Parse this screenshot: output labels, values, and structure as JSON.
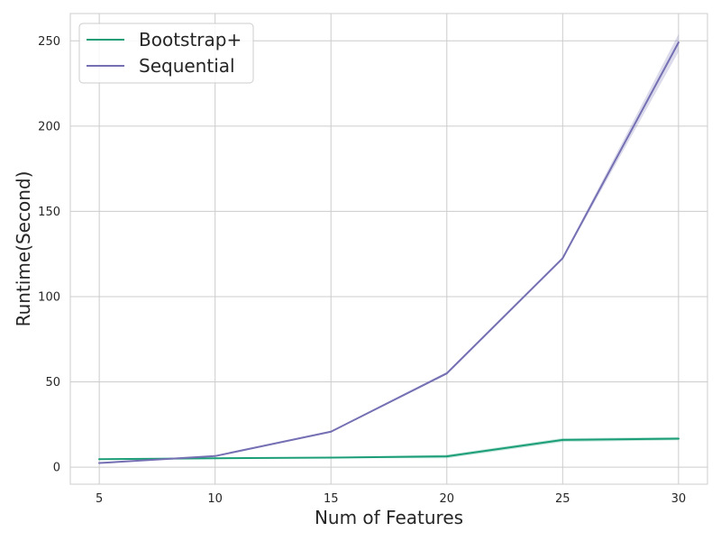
{
  "chart_data": {
    "type": "line",
    "xlabel": "Num of Features",
    "ylabel": "Runtime(Second)",
    "x": [
      5,
      10,
      15,
      20,
      25,
      30
    ],
    "xlim": [
      3.75,
      31.25
    ],
    "ylim": [
      -10,
      266
    ],
    "xticks": [
      5,
      10,
      15,
      20,
      25,
      30
    ],
    "yticks": [
      0,
      50,
      100,
      150,
      200,
      250
    ],
    "grid": true,
    "legend_position": "top-left",
    "series": [
      {
        "name": "Bootstrap+",
        "color": "#1b9e77",
        "values": [
          4.7,
          5.2,
          5.6,
          6.3,
          16.0,
          16.7
        ],
        "band_low": [
          4.4,
          5.0,
          5.3,
          5.2,
          14.8,
          15.8
        ],
        "band_high": [
          5.0,
          5.4,
          5.9,
          7.3,
          17.0,
          17.6
        ]
      },
      {
        "name": "Sequential",
        "color": "#7570b3",
        "values": [
          2.4,
          6.5,
          20.8,
          55.0,
          122.5,
          249.0
        ],
        "band_low": [
          2.2,
          6.2,
          20.3,
          54.3,
          121.8,
          243.5
        ],
        "band_high": [
          2.6,
          6.8,
          21.3,
          55.8,
          123.3,
          254.0
        ]
      }
    ]
  }
}
